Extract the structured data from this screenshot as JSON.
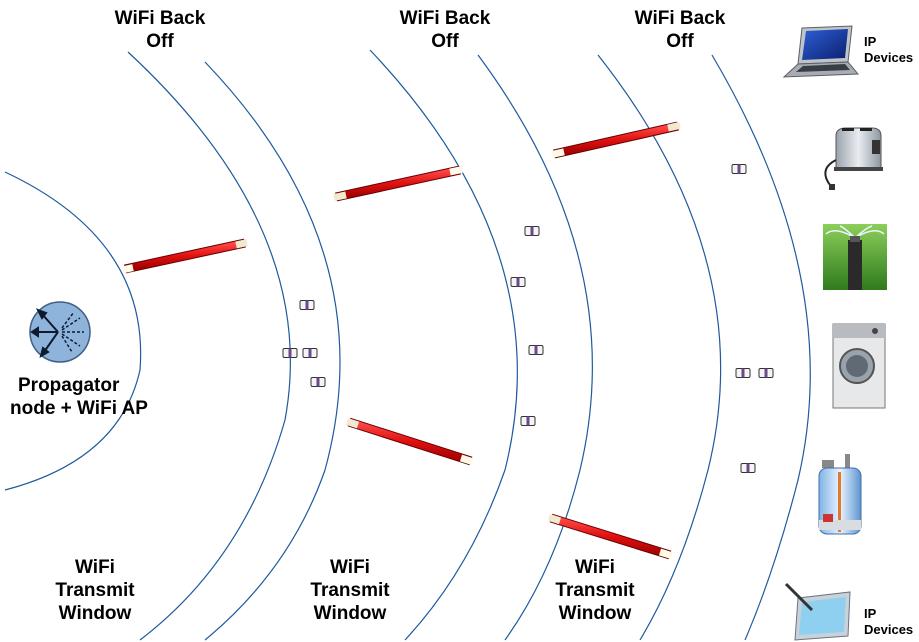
{
  "labels": {
    "backoff": [
      {
        "line1": "WiFi Back",
        "line2": "Off"
      },
      {
        "line1": "WiFi Back",
        "line2": "Off"
      },
      {
        "line1": "WiFi Back",
        "line2": "Off"
      }
    ],
    "transmit": [
      {
        "line1": "WiFi",
        "line2": "Transmit",
        "line3": "Window"
      },
      {
        "line1": "WiFi",
        "line2": "Transmit",
        "line3": "Window"
      },
      {
        "line1": "WiFi",
        "line2": "Transmit",
        "line3": "Window"
      }
    ],
    "node": {
      "line1": "Propagator",
      "line2": "node + WiFi AP"
    },
    "device_top": {
      "line1": "IP",
      "line2": "Devices"
    },
    "device_bottom": {
      "line1": "IP",
      "line2": "Devices"
    }
  },
  "devices": [
    "laptop-icon",
    "toaster-icon",
    "sprinkler-icon",
    "washing-machine-icon",
    "water-heater-icon",
    "tablet-icon"
  ],
  "colors": {
    "arc": "#1f5a9e",
    "rod": "#e11b1b",
    "node_fill": "#8fb4dc"
  }
}
